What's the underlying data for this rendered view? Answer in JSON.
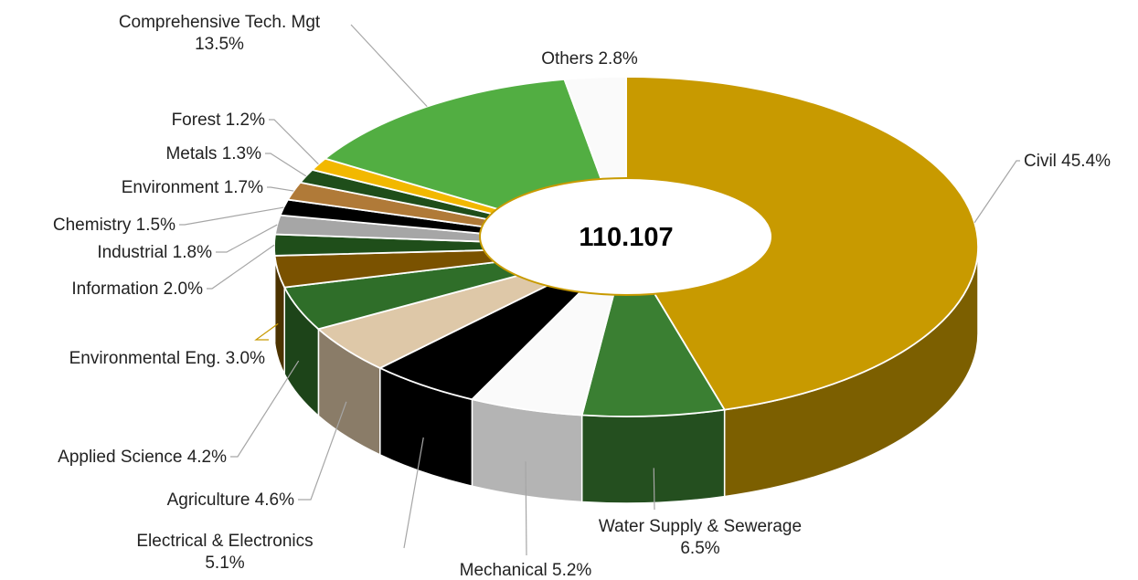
{
  "chart_data": {
    "type": "pie",
    "variant": "3d-doughnut",
    "center_label": "110.107",
    "unit": "%",
    "slices": [
      {
        "name": "Civil",
        "value": 45.4,
        "label": "Civil 45.4%",
        "color": "#C89A00"
      },
      {
        "name": "Water Supply & Sewerage",
        "value": 6.5,
        "label": [
          "Water Supply & Sewerage",
          "6.5%"
        ],
        "color": "#3A7F32"
      },
      {
        "name": "Mechanical",
        "value": 5.2,
        "label": "Mechanical 5.2%",
        "color": "#FAFAFA"
      },
      {
        "name": "Electrical & Electronics",
        "value": 5.1,
        "label": [
          "Electrical & Electronics",
          "5.1%"
        ],
        "color": "#000000"
      },
      {
        "name": "Agriculture",
        "value": 4.6,
        "label": "Agriculture 4.6%",
        "color": "#DEC8A8"
      },
      {
        "name": "Applied Science",
        "value": 4.2,
        "label": "Applied Science 4.2%",
        "color": "#2F6E29"
      },
      {
        "name": "Environmental Eng.",
        "value": 3.0,
        "label": "Environmental Eng. 3.0%",
        "color": "#7A5200"
      },
      {
        "name": "Information",
        "value": 2.0,
        "label": "Information 2.0%",
        "color": "#1F4E1A"
      },
      {
        "name": "Industrial",
        "value": 1.8,
        "label": "Industrial 1.8%",
        "color": "#A6A6A6"
      },
      {
        "name": "Chemistry",
        "value": 1.5,
        "label": "Chemistry  1.5%",
        "color": "#000000"
      },
      {
        "name": "Environment",
        "value": 1.7,
        "label": "Environment  1.7%",
        "color": "#B07A38"
      },
      {
        "name": "Metals",
        "value": 1.3,
        "label": "Metals  1.3%",
        "color": "#1F4E1A"
      },
      {
        "name": "Forest",
        "value": 1.2,
        "label": "Forest 1.2%",
        "color": "#F2B800"
      },
      {
        "name": "Comprehensive Tech. Mgt",
        "value": 13.5,
        "label": [
          "Comprehensive Tech. Mgt",
          "13.5%"
        ],
        "color": "#52AE42"
      },
      {
        "name": "Others",
        "value": 2.8,
        "label": "Others 2.8%",
        "color": "#FAFAFA"
      }
    ]
  }
}
